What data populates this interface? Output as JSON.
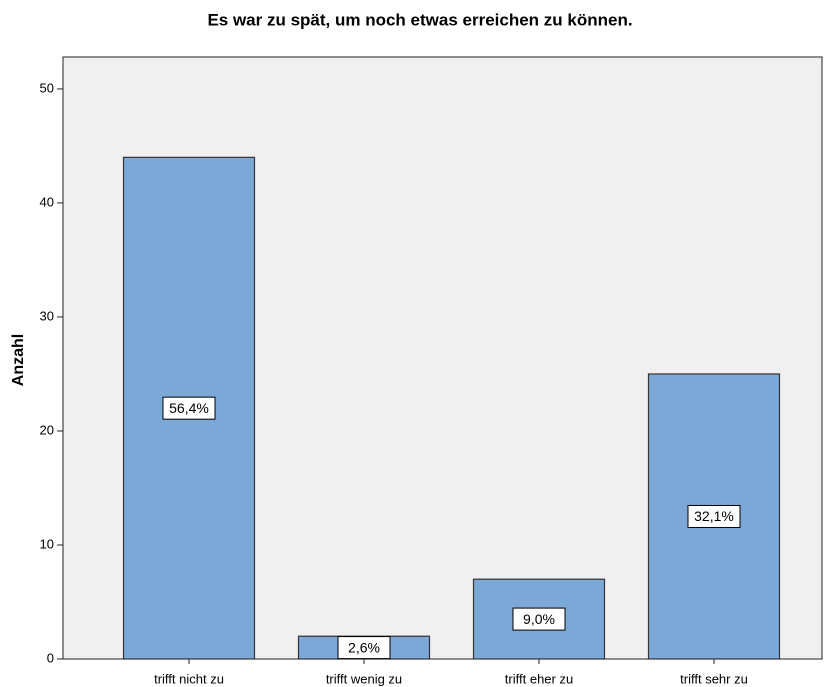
{
  "chart_data": {
    "type": "bar",
    "title": "Es war zu spät, um noch etwas erreichen zu können.",
    "ylabel": "Anzahl",
    "categories": [
      "trifft nicht zu",
      "trifft wenig zu",
      "trifft eher zu",
      "trifft sehr zu"
    ],
    "values": [
      44,
      2,
      7,
      25
    ],
    "percentages": [
      {
        "value": 56.4,
        "label": "56,4%"
      },
      {
        "value": 2.6,
        "label": "2,6%"
      },
      {
        "value": 9.0,
        "label": "9,0%"
      },
      {
        "value": 32.1,
        "label": "32,1%"
      }
    ],
    "color": "#7ba8d7",
    "ylim": [
      0,
      52.8
    ],
    "yticks": [
      0,
      10,
      20,
      30,
      40,
      50
    ]
  }
}
